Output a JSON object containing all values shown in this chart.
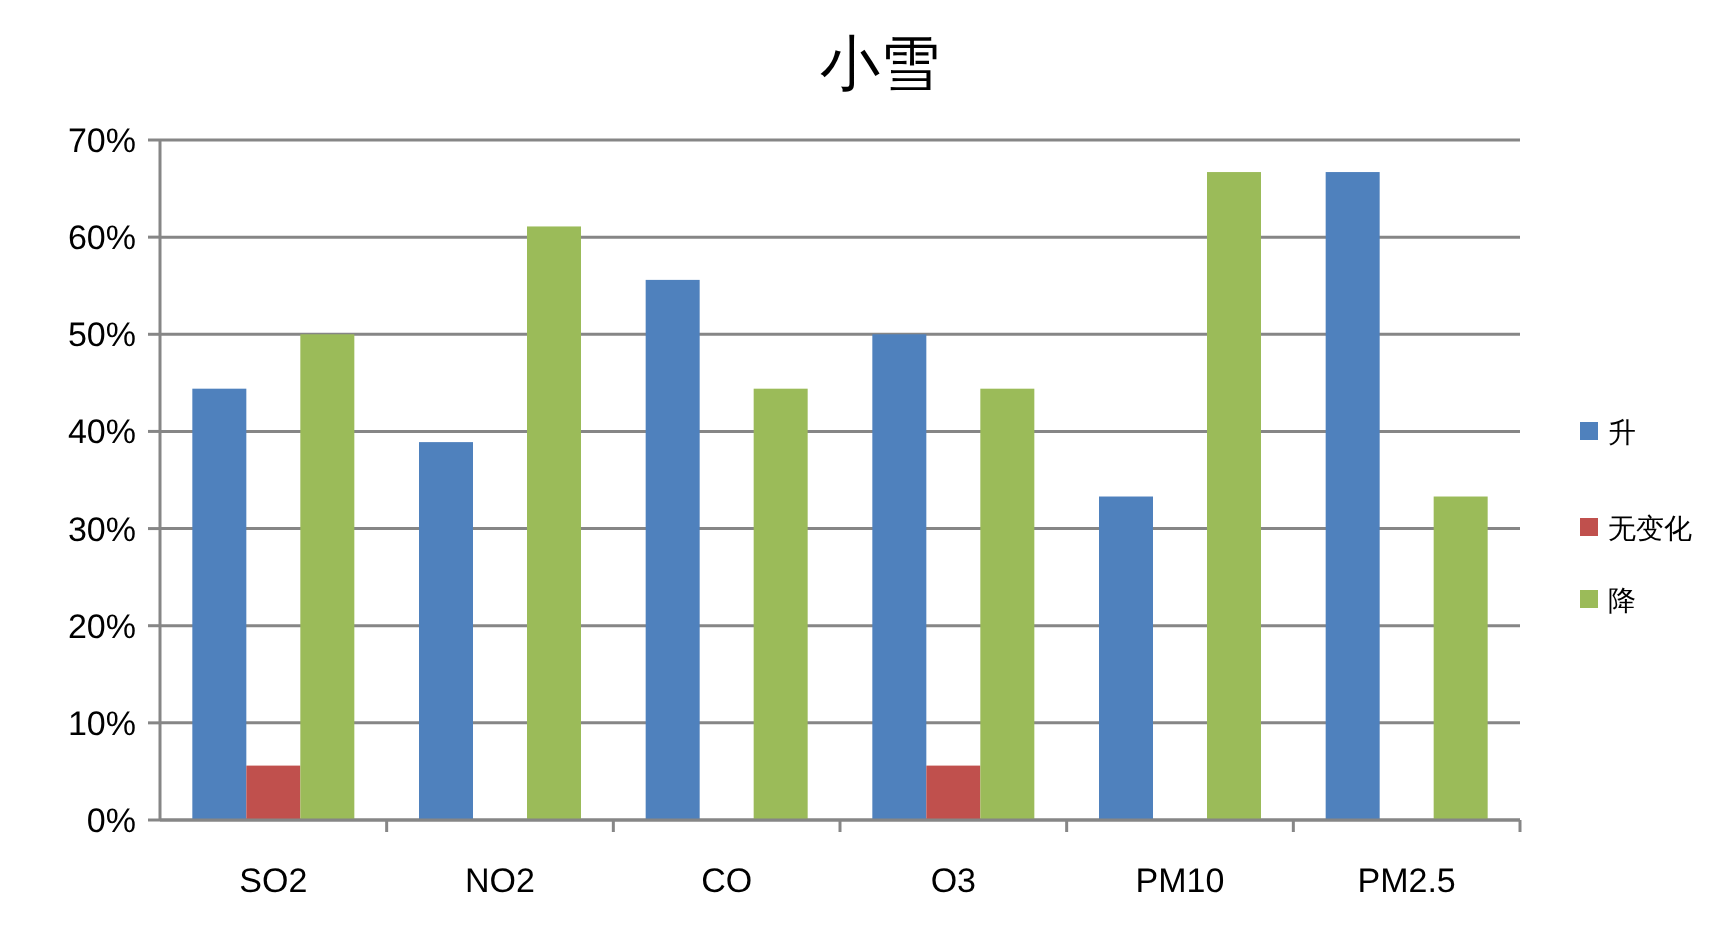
{
  "chart_data": {
    "type": "bar",
    "title": "小雪",
    "categories": [
      "SO2",
      "NO2",
      "CO",
      "O3",
      "PM10",
      "PM2.5"
    ],
    "series": [
      {
        "name": "升",
        "color": "#4f81bd",
        "values": [
          44.4,
          38.9,
          55.6,
          50,
          33.3,
          66.7
        ]
      },
      {
        "name": "无变化",
        "color": "#c0504d",
        "values": [
          5.6,
          0,
          0,
          5.6,
          0,
          0
        ]
      },
      {
        "name": "降",
        "color": "#9bbb59",
        "values": [
          50,
          61.1,
          44.4,
          44.4,
          66.7,
          33.3
        ]
      }
    ],
    "ylim": [
      0,
      70
    ],
    "yticks": [
      {
        "value": 0,
        "label": "0%"
      },
      {
        "value": 10,
        "label": "10%"
      },
      {
        "value": 20,
        "label": "20%"
      },
      {
        "value": 30,
        "label": "30%"
      },
      {
        "value": 40,
        "label": "40%"
      },
      {
        "value": 50,
        "label": "50%"
      },
      {
        "value": 60,
        "label": "60%"
      },
      {
        "value": 70,
        "label": "70%"
      }
    ],
    "grid": "y",
    "legend": "right"
  }
}
